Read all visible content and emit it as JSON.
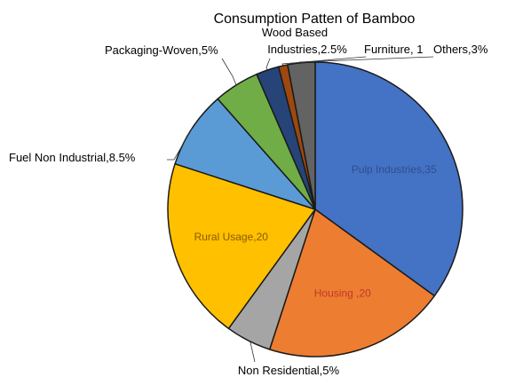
{
  "chart_data": {
    "type": "pie",
    "title": "Consumption Patten of Bamboo",
    "slices": [
      {
        "label": "Pulp Industries,35",
        "value": 35,
        "color": "#4472C4",
        "label_pos": "inside"
      },
      {
        "label": "Housing ,20",
        "value": 20,
        "color": "#ED7D31",
        "label_pos": "inside"
      },
      {
        "label": "Non Residential,5%",
        "value": 5,
        "color": "#A5A5A5",
        "label_pos": "outside"
      },
      {
        "label": "Rural Usage,20",
        "value": 20,
        "color": "#FFC000",
        "label_pos": "inside"
      },
      {
        "label": "Fuel Non Industrial,8.5%",
        "value": 8.5,
        "color": "#5B9BD5",
        "label_pos": "outside"
      },
      {
        "label": "Packaging-Woven,5%",
        "value": 5,
        "color": "#70AD47",
        "label_pos": "outside"
      },
      {
        "label": "Wood Based Industries,2.5%",
        "value": 2.5,
        "color": "#264478",
        "label_pos": "outside"
      },
      {
        "label": "Furniture, 1",
        "value": 1,
        "color": "#9E480E",
        "label_pos": "outside"
      },
      {
        "label": "Others,3%",
        "value": 3,
        "color": "#636363",
        "label_pos": "outside"
      }
    ]
  }
}
